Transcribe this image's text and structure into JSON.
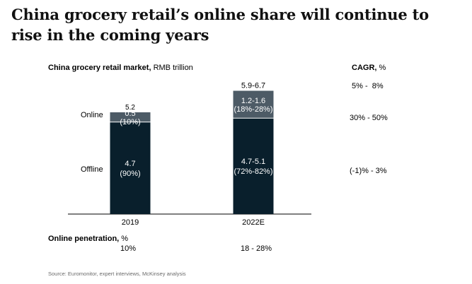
{
  "title": "China grocery retail’s online share will continue to rise in the coming years",
  "subtitle": {
    "bold": "China grocery retail market,",
    "unit": " RMB trillion"
  },
  "cagr_header": {
    "bold": "CAGR,",
    "unit": " %"
  },
  "chart_data": {
    "type": "bar",
    "stacked": true,
    "categories": [
      "2019",
      "2022E"
    ],
    "series": [
      {
        "name": "Offline",
        "values": [
          4.7,
          4.9
        ],
        "labels": [
          "4.7\n(90%)",
          "4.7-5.1\n(72%-82%)"
        ],
        "color": "#091f2c"
      },
      {
        "name": "Online",
        "values": [
          0.5,
          1.4
        ],
        "labels": [
          "0.5\n(10%)",
          "1.2-1.6\n(18%-28%)"
        ],
        "color": "#4d5b66"
      }
    ],
    "totals": [
      "5.2",
      "5.9-6.7"
    ],
    "cagr": {
      "total": "5% -  8%",
      "online": "30% - 50%",
      "offline": "(-1)% - 3%"
    },
    "online_penetration": [
      "10%",
      "18 - 28%"
    ],
    "ylim": [
      0,
      6.5
    ]
  },
  "penetration_label": {
    "bold": "Online penetration,",
    "unit": " %"
  },
  "source": "Source: Euromonitor, expert interviews, McKinsey analysis"
}
